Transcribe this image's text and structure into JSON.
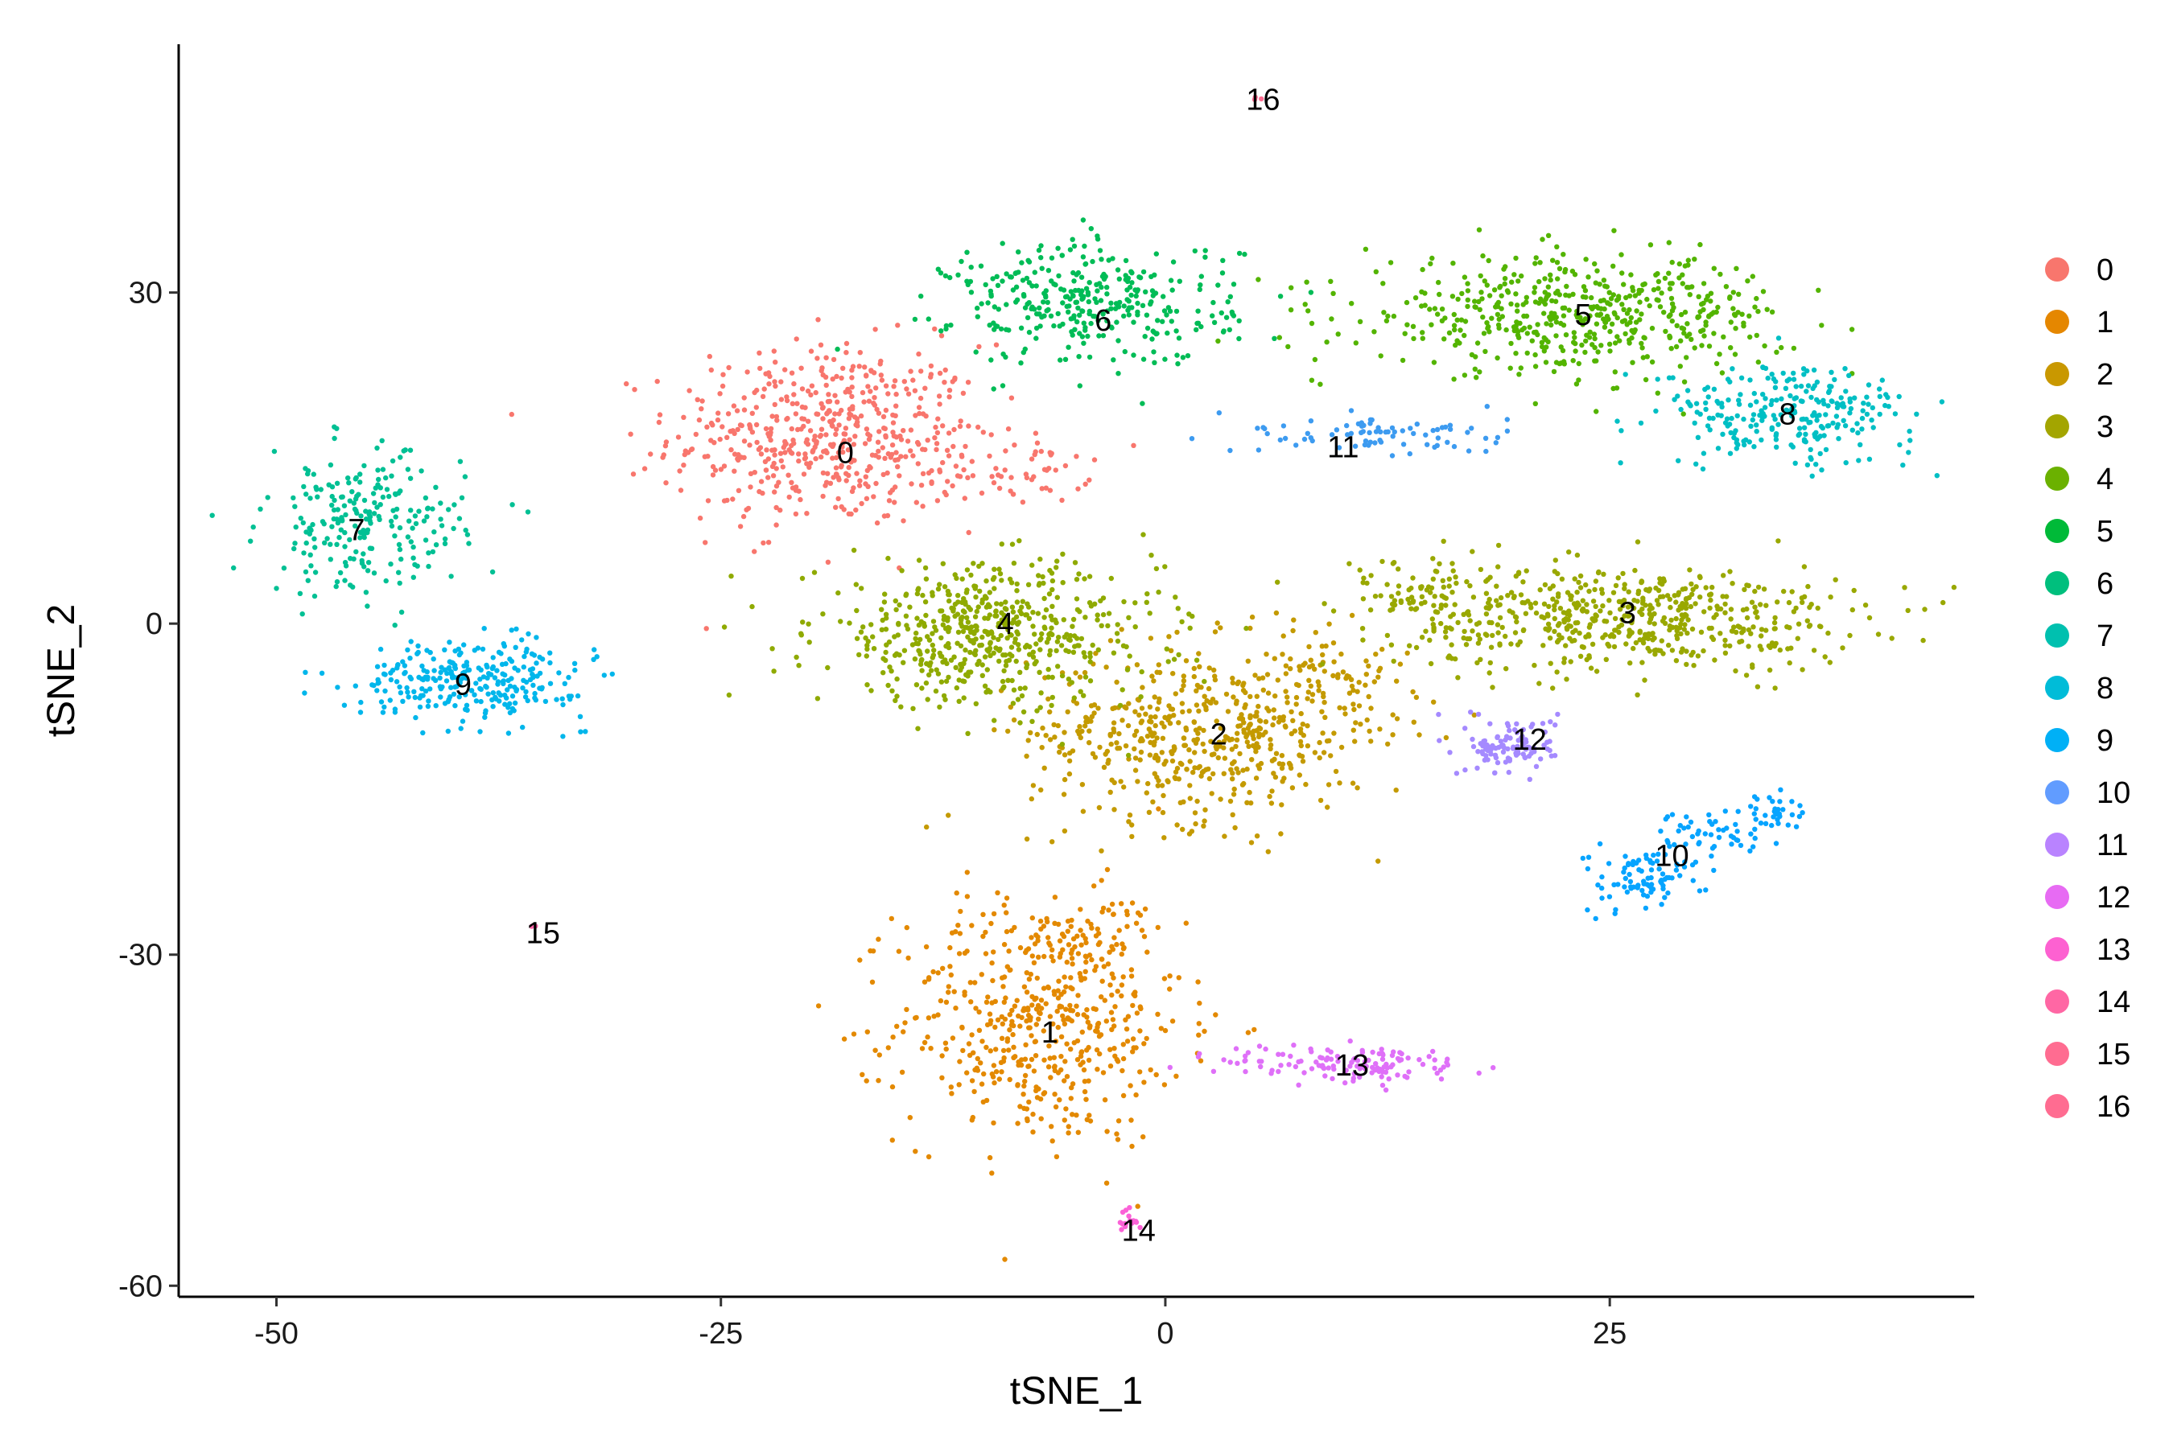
{
  "chart_data": {
    "type": "scatter",
    "title": "",
    "xlabel": "tSNE_1",
    "ylabel": "tSNE_2",
    "xlim": [
      -55.5,
      45.5
    ],
    "ylim": [
      -61,
      52.5
    ],
    "xticks": [
      -50,
      -25,
      0,
      25
    ],
    "yticks": [
      30,
      0,
      -30,
      -60
    ],
    "grid": false,
    "legend_position": "right",
    "clusters": [
      {
        "name": "0",
        "color": "#F8766D",
        "label_xy": [
          -18,
          15.5
        ]
      },
      {
        "name": "1",
        "color": "#E58700",
        "label_xy": [
          -6.5,
          -37
        ]
      },
      {
        "name": "2",
        "color": "#C99800",
        "label_xy": [
          3,
          -10
        ]
      },
      {
        "name": "3",
        "color": "#A3A500",
        "label_xy": [
          26,
          1
        ]
      },
      {
        "name": "4",
        "color": "#6BB100",
        "label_xy": [
          -9,
          0
        ]
      },
      {
        "name": "5",
        "color": "#00BA38",
        "label_xy": [
          23.5,
          28
        ]
      },
      {
        "name": "6",
        "color": "#00BF7D",
        "label_xy": [
          -3.5,
          27.5
        ]
      },
      {
        "name": "7",
        "color": "#00C0AF",
        "label_xy": [
          -45.5,
          8.5
        ]
      },
      {
        "name": "8",
        "color": "#00BCD8",
        "label_xy": [
          35,
          19
        ]
      },
      {
        "name": "9",
        "color": "#00B0F6",
        "label_xy": [
          -39.5,
          -5.5
        ]
      },
      {
        "name": "10",
        "color": "#619CFF",
        "label_xy": [
          28.5,
          -21
        ]
      },
      {
        "name": "11",
        "color": "#B983FF",
        "label_xy": [
          10,
          16
        ]
      },
      {
        "name": "12",
        "color": "#E76BF3",
        "label_xy": [
          20.5,
          -10.5
        ]
      },
      {
        "name": "13",
        "color": "#FD61D1",
        "label_xy": [
          10.5,
          -40
        ]
      },
      {
        "name": "14",
        "color": "#FF67A4",
        "label_xy": [
          -1.5,
          -55
        ]
      },
      {
        "name": "15",
        "color": "#FF6C91",
        "label_xy": [
          -35,
          -28
        ]
      },
      {
        "name": "16",
        "color": "#FF6C91",
        "label_xy": [
          5.5,
          47.5
        ]
      }
    ],
    "point_color_by_cluster": {
      "0": "#F8766D",
      "1": "#E38900",
      "2": "#C49A00",
      "3": "#99A800",
      "4": "#8FAA00",
      "5": "#53B400",
      "6": "#00BC56",
      "7": "#00C094",
      "8": "#00BFC4",
      "9": "#00B6EB",
      "10": "#06A4FF",
      "11": "#3D9BF0",
      "12": "#A58AFF",
      "13": "#DF70F8",
      "14": "#FB61D7",
      "15": "#FF66A8",
      "16": "#FF6C91"
    }
  }
}
